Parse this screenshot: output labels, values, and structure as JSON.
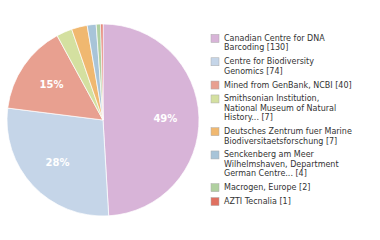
{
  "chart_data": {
    "type": "pie",
    "categories": [
      "Canadian Centre for DNA\nBarcoding [130]",
      "Centre for Biodiversity\nGenomics [74]",
      "Mined from GenBank, NCBI [40]",
      "Smithsonian Institution,\nNational Museum of Natural\nHistory... [7]",
      "Deutsches Zentrum fuer Marine\nBiodiversitaetsforschung [7]",
      "Senckenberg am Meer\nWilhelmshaven, Department\nGerman Centre... [4]",
      "Macrogen, Europe [2]",
      "AZTI Tecnalia [1]"
    ],
    "values": [
      49.0566037735849,
      27.9245283018868,
      15.0943396226415,
      2.64150943396226,
      2.64150943396226,
      1.50943396226415,
      0.754716981132075,
      0.377358490566038
    ],
    "value_labels": [
      "49%",
      "28%",
      "15%",
      null,
      null,
      null,
      null,
      null
    ],
    "data_labels": true,
    "colors": [
      "#d8b4d8",
      "#c5d5e8",
      "#e8a090",
      "#d4e0a0",
      "#f0b870",
      "#a8c4d8",
      "#b0d0a0",
      "#e07060"
    ],
    "legend": "right"
  }
}
